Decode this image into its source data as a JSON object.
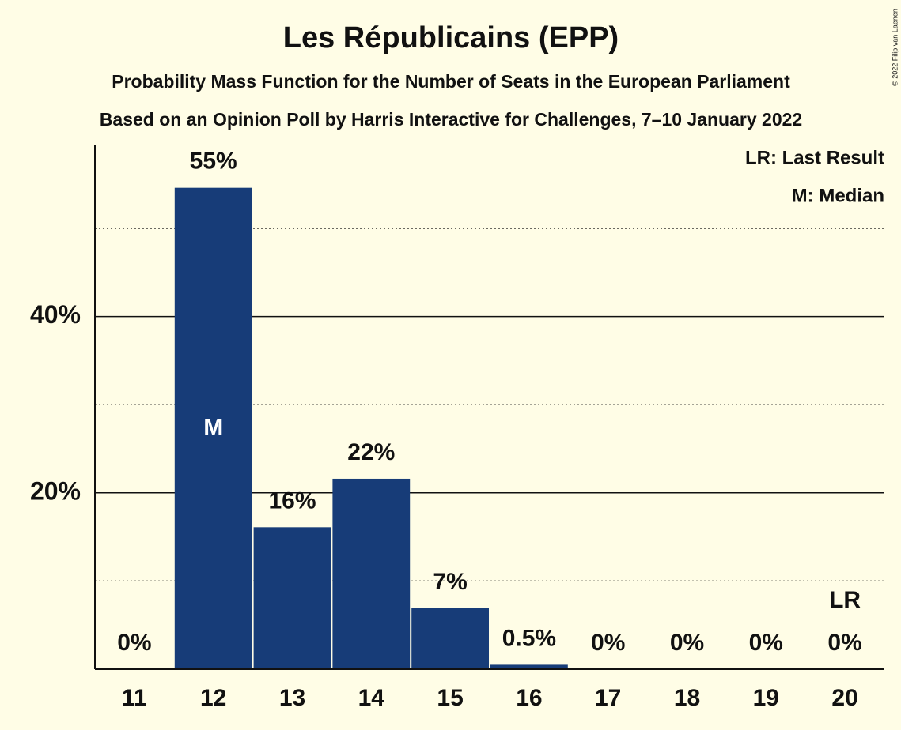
{
  "chart_data": {
    "type": "bar",
    "title": "Les Républicains (EPP)",
    "subtitle": "Probability Mass Function for the Number of Seats in the European Parliament",
    "subtitle2": "Based on an Opinion Poll by Harris Interactive for Challenges, 7–10 January 2022",
    "copyright": "© 2022 Filip van Laenen",
    "legend": [
      "LR: Last Result",
      "M: Median"
    ],
    "categories": [
      "11",
      "12",
      "13",
      "14",
      "15",
      "16",
      "17",
      "18",
      "19",
      "20"
    ],
    "values": [
      0,
      54.6,
      16.1,
      21.6,
      6.9,
      0.5,
      0,
      0,
      0,
      0
    ],
    "value_labels": [
      "0%",
      "55%",
      "16%",
      "22%",
      "7%",
      "0.5%",
      "0%",
      "0%",
      "0%",
      "0%"
    ],
    "color": "#173c78",
    "markers": [
      {
        "category": "12",
        "label": "M"
      },
      {
        "category": "20",
        "label": "LR"
      }
    ],
    "ylim": [
      0,
      59.5
    ],
    "yticks": [
      {
        "value": 20,
        "label": "20%"
      },
      {
        "value": 40,
        "label": "40%"
      }
    ],
    "minor_yticks": [
      10,
      30,
      50
    ],
    "grid": true
  }
}
